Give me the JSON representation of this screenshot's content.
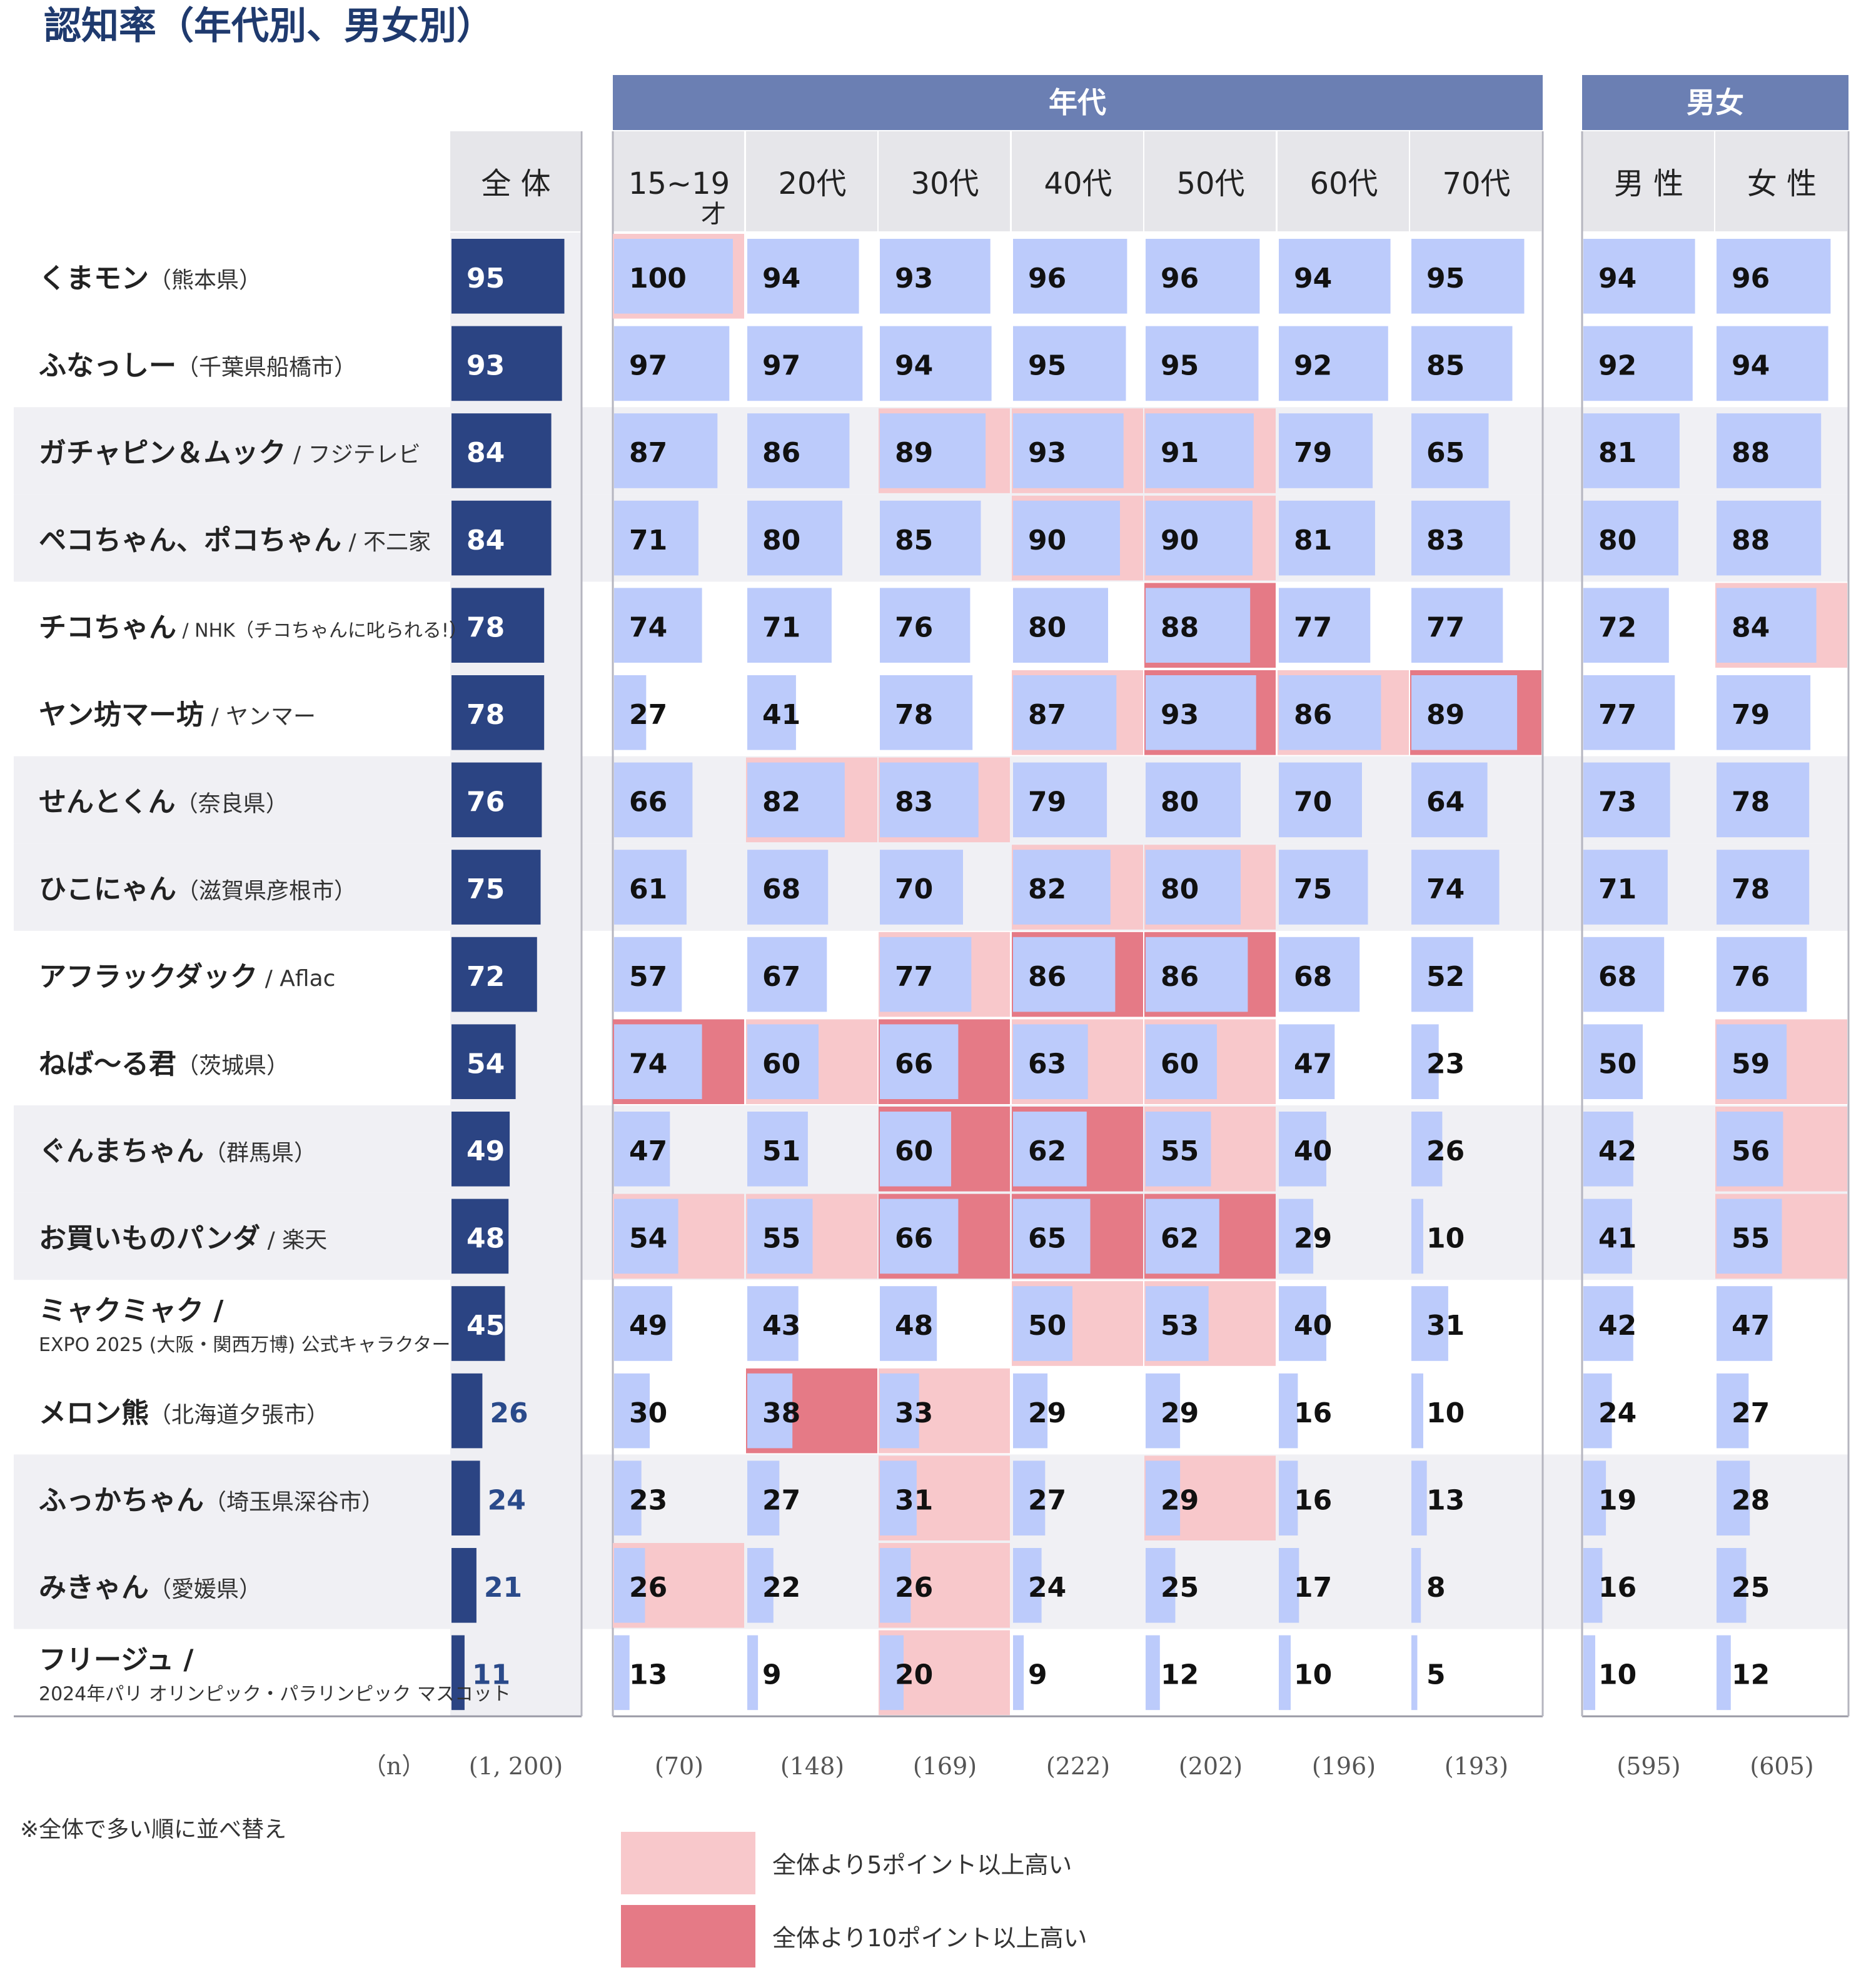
{
  "title": "認知率（年代別、男女別）",
  "group_headers": {
    "age": "年代",
    "gender": "男女"
  },
  "n_label": "（n）",
  "note": "※全体で多い順に並べ替え",
  "legend": [
    {
      "label": "全体より5ポイント以上高い",
      "color": "#f8c8cb"
    },
    {
      "label": "全体より10ポイント以上高い",
      "color": "#e57a86"
    }
  ],
  "colors": {
    "header_bar": "#6b7fb3",
    "overall_bar": "#2b4483",
    "segment_bar": "#bccbfb",
    "col_header_bg": "#e6e6ea",
    "row_band_bg": "#f0f0f4"
  },
  "chart_data": {
    "type": "table",
    "columns": [
      {
        "key": "overall",
        "label": "全 体",
        "n": "(1, 200)"
      },
      {
        "key": "a15",
        "label": "15~19",
        "label2": "才",
        "n": "(70)"
      },
      {
        "key": "a20",
        "label": "20代",
        "n": "(148)"
      },
      {
        "key": "a30",
        "label": "30代",
        "n": "(169)"
      },
      {
        "key": "a40",
        "label": "40代",
        "n": "(222)"
      },
      {
        "key": "a50",
        "label": "50代",
        "n": "(202)"
      },
      {
        "key": "a60",
        "label": "60代",
        "n": "(196)"
      },
      {
        "key": "a70",
        "label": "70代",
        "n": "(193)"
      },
      {
        "key": "male",
        "label": "男 性",
        "n": "(595)"
      },
      {
        "key": "female",
        "label": "女 性",
        "n": "(605)"
      }
    ],
    "rows": [
      {
        "name": "くまモン",
        "sub": "（熊本県）",
        "values": [
          95,
          100,
          94,
          93,
          96,
          96,
          94,
          95,
          94,
          96
        ]
      },
      {
        "name": "ふなっしー",
        "sub": "（千葉県船橋市）",
        "values": [
          93,
          97,
          97,
          94,
          95,
          95,
          92,
          85,
          92,
          94
        ]
      },
      {
        "name": "ガチャピン＆ムック",
        "sub": " / フジテレビ",
        "values": [
          84,
          87,
          86,
          89,
          93,
          91,
          79,
          65,
          81,
          88
        ]
      },
      {
        "name": "ペコちゃん、ポコちゃん",
        "sub": " / 不二家",
        "values": [
          84,
          71,
          80,
          85,
          90,
          90,
          81,
          83,
          80,
          88
        ]
      },
      {
        "name": "チコちゃん",
        "sub": " / NHK（チコちゃんに叱られる!）",
        "values": [
          78,
          74,
          71,
          76,
          80,
          88,
          77,
          77,
          72,
          84
        ]
      },
      {
        "name": "ヤン坊マー坊",
        "sub": " / ヤンマー",
        "values": [
          78,
          27,
          41,
          78,
          87,
          93,
          86,
          89,
          77,
          79
        ]
      },
      {
        "name": "せんとくん",
        "sub": "（奈良県）",
        "values": [
          76,
          66,
          82,
          83,
          79,
          80,
          70,
          64,
          73,
          78
        ]
      },
      {
        "name": "ひこにゃん",
        "sub": "（滋賀県彦根市）",
        "values": [
          75,
          61,
          68,
          70,
          82,
          80,
          75,
          74,
          71,
          78
        ]
      },
      {
        "name": "アフラックダック",
        "sub": " / Aflac",
        "values": [
          72,
          57,
          67,
          77,
          86,
          86,
          68,
          52,
          68,
          76
        ]
      },
      {
        "name": "ねば～る君",
        "sub": "（茨城県）",
        "values": [
          54,
          74,
          60,
          66,
          63,
          60,
          47,
          23,
          50,
          59
        ]
      },
      {
        "name": "ぐんまちゃん",
        "sub": "（群馬県）",
        "values": [
          49,
          47,
          51,
          60,
          62,
          55,
          40,
          26,
          42,
          56
        ]
      },
      {
        "name": "お買いものパンダ",
        "sub": " / 楽天",
        "values": [
          48,
          54,
          55,
          66,
          65,
          62,
          29,
          10,
          41,
          55
        ]
      },
      {
        "name": "ミャクミャク /",
        "sub": "EXPO 2025 (大阪・関西万博) 公式キャラクター",
        "values": [
          45,
          49,
          43,
          48,
          50,
          53,
          40,
          31,
          42,
          47
        ]
      },
      {
        "name": "メロン熊",
        "sub": "（北海道夕張市）",
        "values": [
          26,
          30,
          38,
          33,
          29,
          29,
          16,
          10,
          24,
          27
        ]
      },
      {
        "name": "ふっかちゃん",
        "sub": "（埼玉県深谷市）",
        "values": [
          24,
          23,
          27,
          31,
          27,
          29,
          16,
          13,
          19,
          28
        ]
      },
      {
        "name": "みきゃん",
        "sub": "（愛媛県）",
        "values": [
          21,
          26,
          22,
          26,
          24,
          25,
          17,
          8,
          16,
          25
        ]
      },
      {
        "name": "フリージュ /",
        "sub": "2024年パリ オリンピック・パラリンピック マスコット",
        "values": [
          11,
          13,
          9,
          20,
          9,
          12,
          10,
          5,
          10,
          12
        ]
      }
    ]
  }
}
